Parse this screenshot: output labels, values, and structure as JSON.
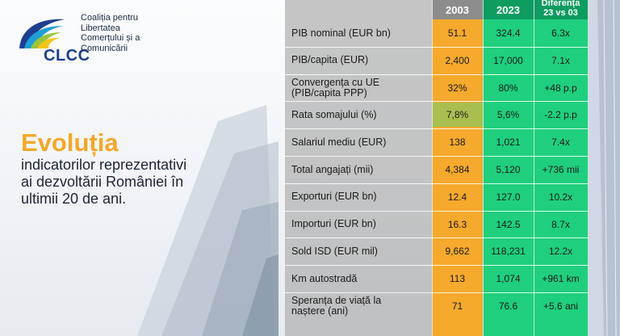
{
  "logo": {
    "acronym": "CLCC",
    "lines": [
      "Coaliția pentru",
      "Libertatea",
      "Comerțului și a",
      "Comunicării"
    ]
  },
  "headline": {
    "title": "Evoluția",
    "subtitle_lines": [
      "indicatorilor reprezentativi",
      "ai dezvoltării României în",
      "ultimii 20 de ani."
    ]
  },
  "table": {
    "headers": {
      "y2003": "2003",
      "y2023": "2023",
      "diff_line1": "Diferența",
      "diff_line2": "23 vs 03"
    },
    "rows": [
      {
        "label": [
          "PIB nominal (EUR bn)"
        ],
        "v2003": "51.1",
        "v2023": "324.4",
        "diff": "6.3x"
      },
      {
        "label": [
          "PIB/capita (EUR)"
        ],
        "v2003": "2,400",
        "v2023": "17,000",
        "diff": "7.1x"
      },
      {
        "label": [
          "Convergența cu UE",
          "(PIB/capita PPP)"
        ],
        "v2003": "32%",
        "v2023": "80%",
        "diff": "+48 p.p"
      },
      {
        "label": [
          "Rata somajului (%)"
        ],
        "v2003": "7,8%",
        "v2023": "5,6%",
        "diff": "-2.2 p.p"
      },
      {
        "label": [
          "Salariul mediu (EUR)"
        ],
        "v2003": "138",
        "v2023": "1,021",
        "diff": "7.4x"
      },
      {
        "label": [
          "Total angajați (mii)"
        ],
        "v2003": "4,384",
        "v2023": "5,120",
        "diff": "+736 mii"
      },
      {
        "label": [
          "Exporturi (EUR bn)"
        ],
        "v2003": "12.4",
        "v2023": "127.0",
        "diff": "10.2x"
      },
      {
        "label": [
          "Importuri (EUR bn)"
        ],
        "v2003": "16.3",
        "v2023": "142.5",
        "diff": "8.7x"
      },
      {
        "label": [
          "Sold ISD (EUR mil)"
        ],
        "v2003": "9,662",
        "v2023": "118,231",
        "diff": "12.2x"
      },
      {
        "label": [
          "Km autostradă"
        ],
        "v2003": "113",
        "v2023": "1,074",
        "diff": "+961 km"
      },
      {
        "label": [
          "Speranța de viață la",
          "naștere (ani)"
        ],
        "v2003": "71",
        "v2023": "76.6",
        "diff": "+5.6 ani"
      }
    ]
  },
  "colors": {
    "accent_orange": "#f5a92d",
    "accent_green": "#1fcf7d",
    "header_green": "#0e9c5f",
    "highlight_olive": "#a8bf4f",
    "title_orange": "#f4a82a",
    "logo_blue": "#1d3f8f"
  }
}
